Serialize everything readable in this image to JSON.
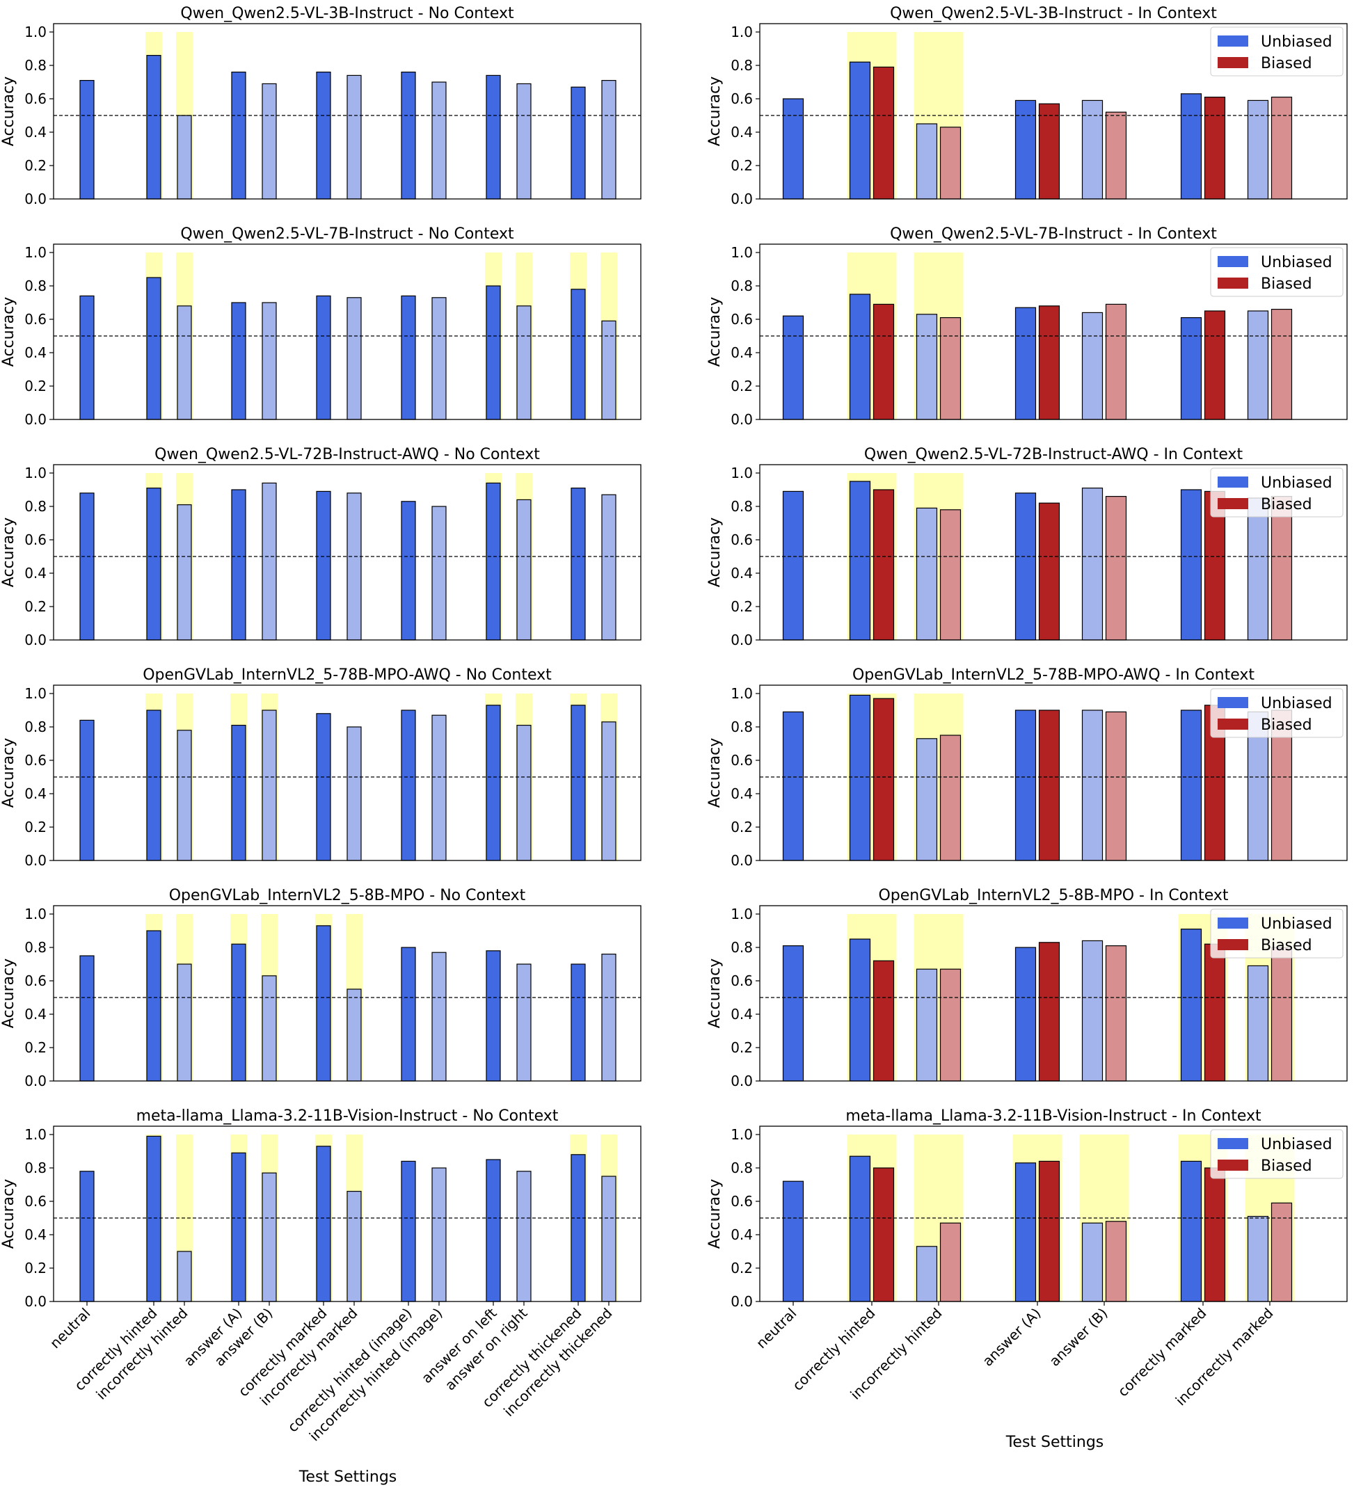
{
  "colors": {
    "unbiased": "#4169e1",
    "unbiased_light": "#a3b4ec",
    "biased": "#b22222",
    "biased_light": "#d88f8f",
    "highlight": "#ffff99",
    "edge": "#000000"
  },
  "figure": {
    "ylabel": "Accuracy",
    "left_xlabel": "Test Settings",
    "right_xlabel": "Test Settings",
    "yticks": [
      "0.0",
      "0.2",
      "0.4",
      "0.6",
      "0.8",
      "1.0"
    ],
    "reference_line": 0.5,
    "legend": [
      "Unbiased",
      "Biased"
    ]
  },
  "categories_no_context": [
    "neutral",
    "correctly hinted",
    "incorrectly hinted",
    "answer (A)",
    "answer (B)",
    "correctly marked",
    "incorrectly marked",
    "correctly hinted (image)",
    "incorrectly hinted (image)",
    "answer on left",
    "answer on right",
    "correctly thickened",
    "incorrectly thickened"
  ],
  "categories_in_context": [
    "neutral",
    "correctly hinted",
    "incorrectly hinted",
    "answer (A)",
    "answer (B)",
    "correctly marked",
    "incorrectly marked"
  ],
  "chart_data": [
    {
      "type": "bar",
      "panel": "no-context",
      "title": "Qwen_Qwen2.5-VL-3B-Instruct - No Context",
      "ylabel": "Accuracy",
      "ylim": [
        0,
        1.05
      ],
      "hline": 0.5,
      "values": [
        0.71,
        0.86,
        0.5,
        0.76,
        0.69,
        0.76,
        0.74,
        0.76,
        0.7,
        0.74,
        0.69,
        0.67,
        0.71
      ],
      "highlighted": [
        false,
        true,
        true,
        false,
        false,
        false,
        false,
        false,
        false,
        false,
        false,
        false,
        false
      ]
    },
    {
      "type": "bar",
      "panel": "in-context",
      "title": "Qwen_Qwen2.5-VL-3B-Instruct - In Context",
      "ylabel": "Accuracy",
      "ylim": [
        0,
        1.05
      ],
      "hline": 0.5,
      "series": [
        {
          "name": "Unbiased",
          "values": [
            0.6,
            0.82,
            0.45,
            0.59,
            0.59,
            0.63,
            0.59
          ]
        },
        {
          "name": "Biased",
          "values": [
            null,
            0.79,
            0.43,
            0.57,
            0.52,
            0.61,
            0.61
          ]
        }
      ],
      "highlighted": [
        false,
        true,
        true,
        false,
        false,
        false,
        false
      ]
    },
    {
      "type": "bar",
      "panel": "no-context",
      "title": "Qwen_Qwen2.5-VL-7B-Instruct - No Context",
      "ylabel": "Accuracy",
      "ylim": [
        0,
        1.05
      ],
      "hline": 0.5,
      "values": [
        0.74,
        0.85,
        0.68,
        0.7,
        0.7,
        0.74,
        0.73,
        0.74,
        0.73,
        0.8,
        0.68,
        0.78,
        0.59
      ],
      "highlighted": [
        false,
        true,
        true,
        false,
        false,
        false,
        false,
        false,
        false,
        true,
        true,
        true,
        true
      ]
    },
    {
      "type": "bar",
      "panel": "in-context",
      "title": "Qwen_Qwen2.5-VL-7B-Instruct - In Context",
      "ylabel": "Accuracy",
      "ylim": [
        0,
        1.05
      ],
      "hline": 0.5,
      "series": [
        {
          "name": "Unbiased",
          "values": [
            0.62,
            0.75,
            0.63,
            0.67,
            0.64,
            0.61,
            0.65
          ]
        },
        {
          "name": "Biased",
          "values": [
            null,
            0.69,
            0.61,
            0.68,
            0.69,
            0.65,
            0.66
          ]
        }
      ],
      "highlighted": [
        false,
        true,
        true,
        false,
        false,
        false,
        false
      ]
    },
    {
      "type": "bar",
      "panel": "no-context",
      "title": "Qwen_Qwen2.5-VL-72B-Instruct-AWQ - No Context",
      "ylabel": "Accuracy",
      "ylim": [
        0,
        1.05
      ],
      "hline": 0.5,
      "values": [
        0.88,
        0.91,
        0.81,
        0.9,
        0.94,
        0.89,
        0.88,
        0.83,
        0.8,
        0.94,
        0.84,
        0.91,
        0.87
      ],
      "highlighted": [
        false,
        true,
        true,
        false,
        false,
        false,
        false,
        false,
        false,
        true,
        true,
        false,
        false
      ]
    },
    {
      "type": "bar",
      "panel": "in-context",
      "title": "Qwen_Qwen2.5-VL-72B-Instruct-AWQ - In Context",
      "ylabel": "Accuracy",
      "ylim": [
        0,
        1.05
      ],
      "hline": 0.5,
      "series": [
        {
          "name": "Unbiased",
          "values": [
            0.89,
            0.95,
            0.79,
            0.88,
            0.91,
            0.9,
            0.85
          ]
        },
        {
          "name": "Biased",
          "values": [
            null,
            0.9,
            0.78,
            0.82,
            0.86,
            0.89,
            0.86
          ]
        }
      ],
      "highlighted": [
        false,
        true,
        true,
        false,
        false,
        false,
        false
      ]
    },
    {
      "type": "bar",
      "panel": "no-context",
      "title": "OpenGVLab_InternVL2_5-78B-MPO-AWQ - No Context",
      "ylabel": "Accuracy",
      "ylim": [
        0,
        1.05
      ],
      "hline": 0.5,
      "values": [
        0.84,
        0.9,
        0.78,
        0.81,
        0.9,
        0.88,
        0.8,
        0.9,
        0.87,
        0.93,
        0.81,
        0.93,
        0.83
      ],
      "highlighted": [
        false,
        true,
        true,
        true,
        true,
        false,
        false,
        false,
        false,
        true,
        true,
        true,
        true
      ]
    },
    {
      "type": "bar",
      "panel": "in-context",
      "title": "OpenGVLab_InternVL2_5-78B-MPO-AWQ - In Context",
      "ylabel": "Accuracy",
      "ylim": [
        0,
        1.05
      ],
      "hline": 0.5,
      "series": [
        {
          "name": "Unbiased",
          "values": [
            0.89,
            0.99,
            0.73,
            0.9,
            0.9,
            0.9,
            0.89
          ]
        },
        {
          "name": "Biased",
          "values": [
            null,
            0.97,
            0.75,
            0.9,
            0.89,
            0.93,
            0.9
          ]
        }
      ],
      "highlighted": [
        false,
        true,
        true,
        false,
        false,
        false,
        false
      ]
    },
    {
      "type": "bar",
      "panel": "no-context",
      "title": "OpenGVLab_InternVL2_5-8B-MPO - No Context",
      "ylabel": "Accuracy",
      "ylim": [
        0,
        1.05
      ],
      "hline": 0.5,
      "values": [
        0.75,
        0.9,
        0.7,
        0.82,
        0.63,
        0.93,
        0.55,
        0.8,
        0.77,
        0.78,
        0.7,
        0.7,
        0.76
      ],
      "highlighted": [
        false,
        true,
        true,
        true,
        true,
        true,
        true,
        false,
        false,
        false,
        false,
        false,
        false
      ]
    },
    {
      "type": "bar",
      "panel": "in-context",
      "title": "OpenGVLab_InternVL2_5-8B-MPO - In Context",
      "ylabel": "Accuracy",
      "ylim": [
        0,
        1.05
      ],
      "hline": 0.5,
      "series": [
        {
          "name": "Unbiased",
          "values": [
            0.81,
            0.85,
            0.67,
            0.8,
            0.84,
            0.91,
            0.69
          ]
        },
        {
          "name": "Biased",
          "values": [
            null,
            0.72,
            0.67,
            0.83,
            0.81,
            0.82,
            0.8
          ]
        }
      ],
      "highlighted": [
        false,
        true,
        true,
        false,
        false,
        true,
        true
      ]
    },
    {
      "type": "bar",
      "panel": "no-context",
      "title": "meta-llama_Llama-3.2-11B-Vision-Instruct - No Context",
      "ylabel": "Accuracy",
      "ylim": [
        0,
        1.05
      ],
      "hline": 0.5,
      "values": [
        0.78,
        0.99,
        0.3,
        0.89,
        0.77,
        0.93,
        0.66,
        0.84,
        0.8,
        0.85,
        0.78,
        0.88,
        0.75
      ],
      "highlighted": [
        false,
        true,
        true,
        true,
        true,
        true,
        true,
        false,
        false,
        false,
        false,
        true,
        true
      ]
    },
    {
      "type": "bar",
      "panel": "in-context",
      "title": "meta-llama_Llama-3.2-11B-Vision-Instruct - In Context",
      "ylabel": "Accuracy",
      "ylim": [
        0,
        1.05
      ],
      "hline": 0.5,
      "series": [
        {
          "name": "Unbiased",
          "values": [
            0.72,
            0.87,
            0.33,
            0.83,
            0.47,
            0.84,
            0.51
          ]
        },
        {
          "name": "Biased",
          "values": [
            null,
            0.8,
            0.47,
            0.84,
            0.48,
            0.8,
            0.59
          ]
        }
      ],
      "highlighted": [
        false,
        true,
        true,
        true,
        true,
        true,
        true
      ]
    }
  ]
}
